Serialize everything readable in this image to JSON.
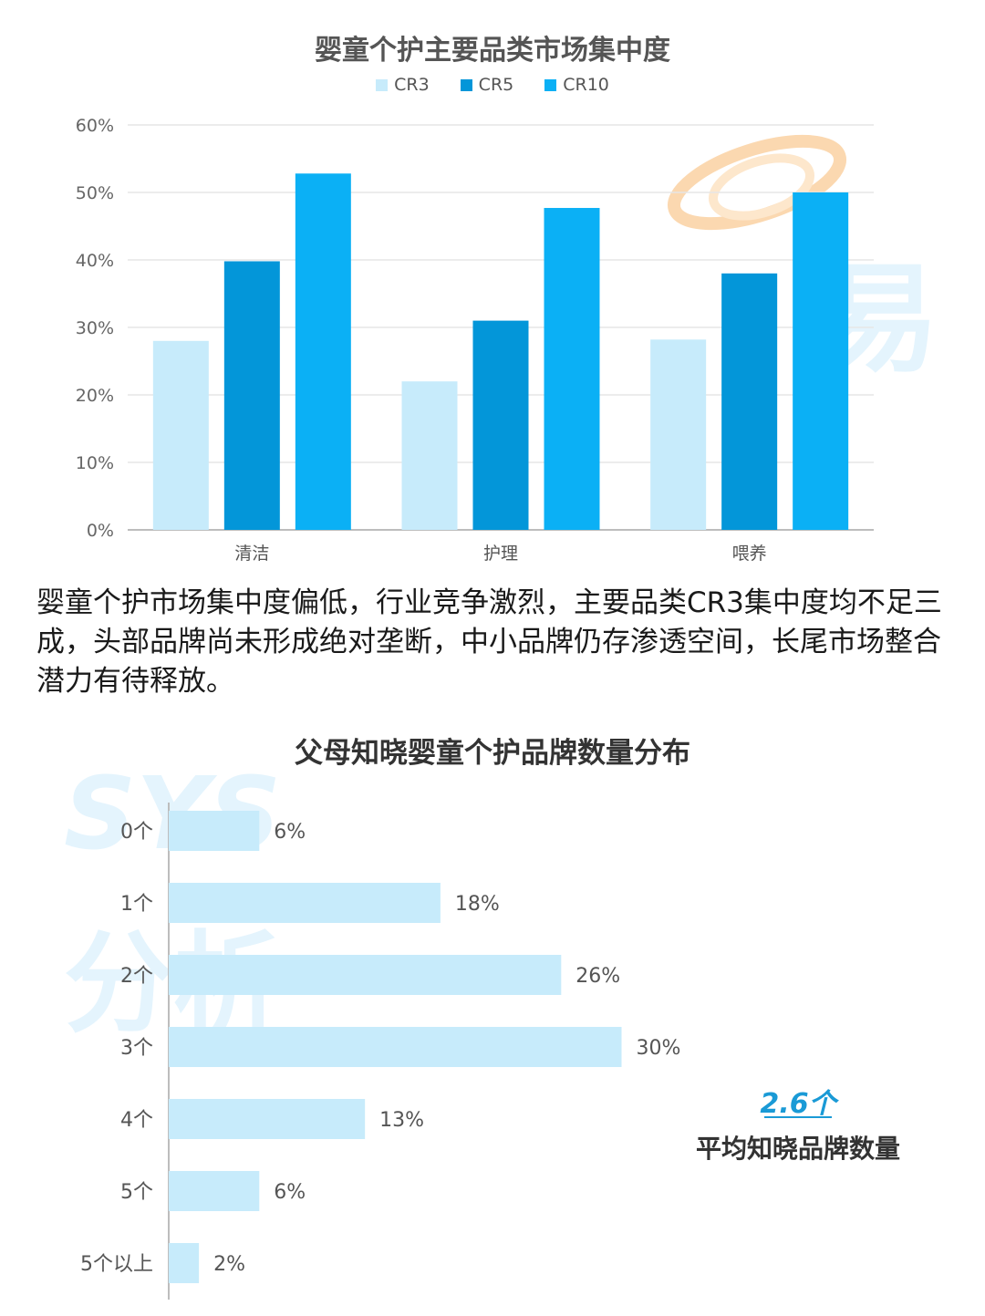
{
  "chart_data": [
    {
      "type": "bar",
      "title": "婴童个护主要品类市场集中度",
      "categories": [
        "清洁",
        "护理",
        "喂养"
      ],
      "series": [
        {
          "name": "CR3",
          "values": [
            28,
            22,
            28.2
          ],
          "color": "#c7ebfb"
        },
        {
          "name": "CR5",
          "values": [
            39.8,
            31,
            38
          ],
          "color": "#0396d9"
        },
        {
          "name": "CR10",
          "values": [
            52.8,
            47.7,
            50
          ],
          "color": "#0bb0f5"
        }
      ],
      "yticks": [
        "0%",
        "10%",
        "20%",
        "30%",
        "40%",
        "50%",
        "60%"
      ],
      "ylim": [
        0,
        60
      ],
      "legend": "top-center",
      "grid": true
    },
    {
      "type": "bar",
      "orientation": "horizontal",
      "title": "父母知晓婴童个护品牌数量分布",
      "categories": [
        "0个",
        "1个",
        "2个",
        "3个",
        "4个",
        "5个",
        "5个以上"
      ],
      "values": [
        6,
        18,
        26,
        30,
        13,
        6,
        2
      ],
      "value_labels": [
        "6%",
        "18%",
        "26%",
        "30%",
        "13%",
        "6%",
        "2%"
      ],
      "bar_color": "#c7ebfb"
    }
  ],
  "paragraph": "婴童个护市场集中度偏低，行业竞争激烈，主要品类CR3集中度均不足三成，头部品牌尚未形成绝对垄断，中小品牌仍存渗透空间，长尾市场整合潜力有待释放。",
  "average": {
    "value": "2.6个",
    "label": "平均知晓品牌数量",
    "color": "#1a9ad6"
  }
}
